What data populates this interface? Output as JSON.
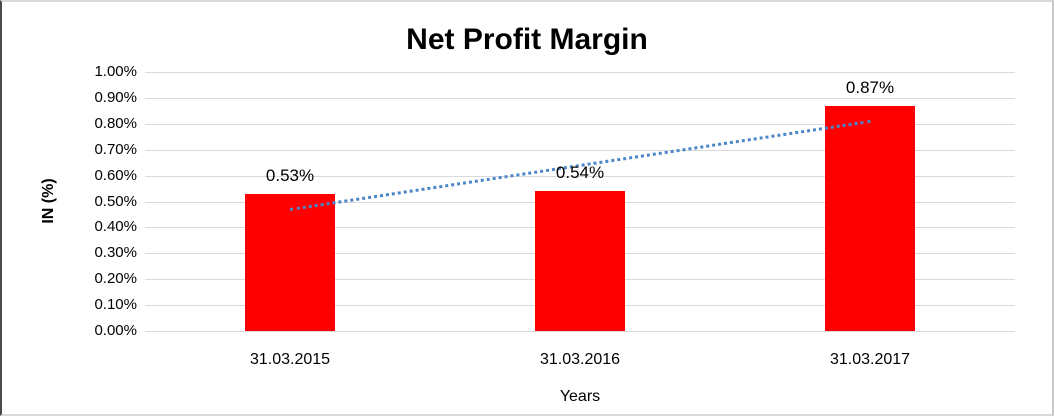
{
  "chart_data": {
    "type": "bar",
    "title": "Net Profit Margin",
    "categories": [
      "31.03.2015",
      "31.03.2016",
      "31.03.2017"
    ],
    "values": [
      0.53,
      0.54,
      0.87
    ],
    "data_labels": [
      "0.53%",
      "0.54%",
      "0.87%"
    ],
    "xlabel": "Years",
    "ylabel": "IN (%)",
    "ylim": [
      0,
      1.0
    ],
    "ytick_labels": [
      "0.00%",
      "0.10%",
      "0.20%",
      "0.30%",
      "0.40%",
      "0.50%",
      "0.60%",
      "0.70%",
      "0.80%",
      "0.90%",
      "1.00%"
    ],
    "grid": "horizontal",
    "legend": "none",
    "bar_color": "#ff0000",
    "gridline_color": "#d9d9d9",
    "trendline": {
      "type": "linear",
      "style": "dotted",
      "color": "#4a86c8",
      "start_value": 0.4767,
      "end_value": 0.8167
    }
  }
}
